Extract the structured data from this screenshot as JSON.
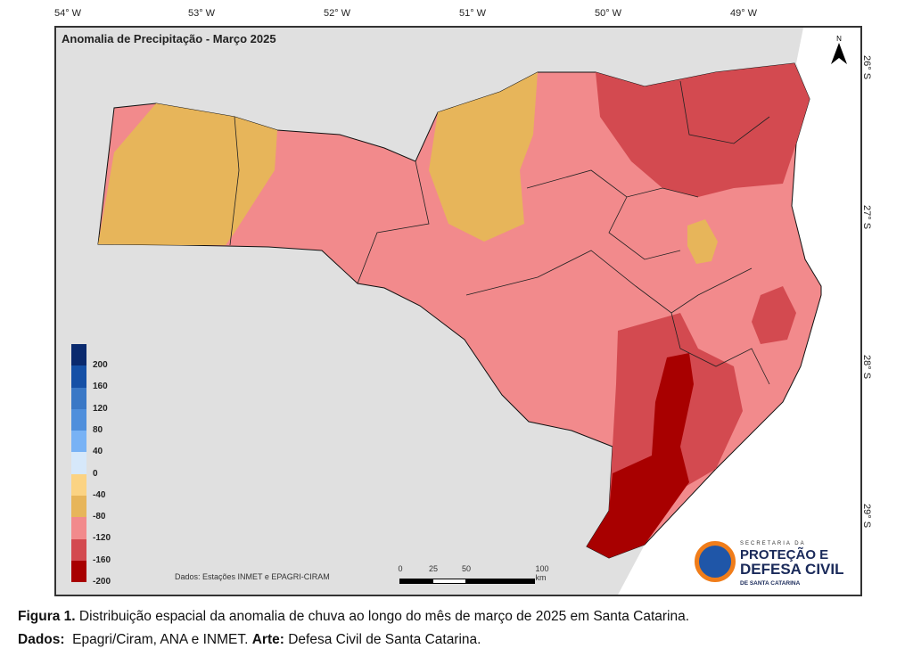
{
  "map": {
    "title": "Anomalia de Precipitação - Março 2025",
    "longitudes": [
      "54° W",
      "53° W",
      "52° W",
      "51° W",
      "50° W",
      "49° W"
    ],
    "latitudes": [
      "26° S",
      "27° S",
      "28° S",
      "29° S"
    ],
    "north_label": "N",
    "legend": {
      "colors": [
        "#0a2a6e",
        "#1550a6",
        "#3a78c6",
        "#4f8fdc",
        "#78b2f5",
        "#d6e8fa",
        "#fbd383",
        "#e7b55a",
        "#f28a8c",
        "#d34a50",
        "#a80000"
      ],
      "labels": [
        "200",
        "160",
        "120",
        "80",
        "40",
        "0",
        "-40",
        "-80",
        "-120",
        "-160",
        "-200"
      ]
    },
    "source": "Dados: Estações INMET e EPAGRI-CIRAM",
    "scale": {
      "labels": [
        "0",
        "25",
        "50",
        "100 km"
      ]
    },
    "logo": {
      "line1": "SECRETARIA DA",
      "line2": "PROTEÇÃO E",
      "line3": "DEFESA CIVIL",
      "line4": "DE SANTA CATARINA"
    }
  },
  "caption": {
    "fig_label": "Figura 1.",
    "fig_text": " Distribuição espacial da anomalia de chuva ao longo do mês de março de 2025 em Santa Catarina.",
    "data_label": "Dados:",
    "data_text": "  Epagri/Ciram, ANA e INMET. ",
    "art_label": "Arte:",
    "art_text": " Defesa Civil de Santa Catarina."
  }
}
